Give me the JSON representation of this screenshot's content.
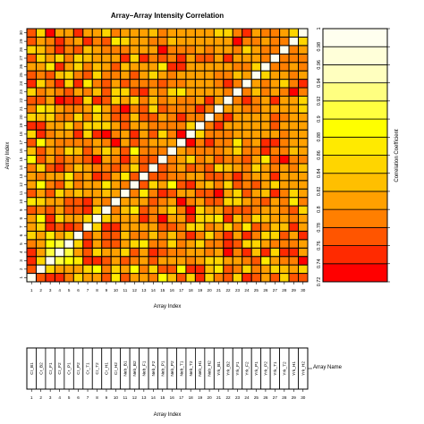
{
  "chart_data": {
    "type": "heatmap",
    "title": "Array–Array Intensity Correlation",
    "xlabel": "Array Index",
    "ylabel": "Array Index",
    "x_ticks": [
      "1",
      "2",
      "3",
      "4",
      "5",
      "6",
      "7",
      "8",
      "9",
      "10",
      "11",
      "12",
      "13",
      "14",
      "15",
      "16",
      "17",
      "18",
      "19",
      "20",
      "21",
      "22",
      "23",
      "24",
      "25",
      "26",
      "27",
      "28",
      "29",
      "30"
    ],
    "y_ticks": [
      "1",
      "2",
      "3",
      "4",
      "5",
      "6",
      "7",
      "8",
      "9",
      "10",
      "11",
      "12",
      "13",
      "14",
      "15",
      "16",
      "17",
      "18",
      "19",
      "20",
      "21",
      "22",
      "23",
      "24",
      "25",
      "26",
      "27",
      "28",
      "29",
      "30"
    ],
    "grid": true,
    "legend": "right",
    "colorbar": {
      "label": "Correlation Coefficient",
      "ticks": [
        "0.72",
        "0.74",
        "0.76",
        "0.78",
        "0.8",
        "0.82",
        "0.84",
        "0.86",
        "0.88",
        "0.9",
        "0.92",
        "0.94",
        "0.96",
        "0.98",
        "1"
      ],
      "range": [
        0.72,
        1.0
      ],
      "colors": [
        "#ff0000",
        "#ff2a00",
        "#ff5500",
        "#ff7f00",
        "#ffa000",
        "#ffbf00",
        "#ffd500",
        "#ffea00",
        "#ffff00",
        "#ffff40",
        "#ffff80",
        "#ffffbf",
        "#ffffd9",
        "#ffffef"
      ]
    },
    "bottom_panel": {
      "xlabel": "Array Index",
      "legend_label": "Array Name",
      "names": [
        "Cr_B1",
        "Cr_B2",
        "Cr_F1",
        "Cr_F2",
        "Cr_P1",
        "Cr_P2",
        "Cr_T1",
        "Cr_T2",
        "Cr_H1",
        "Cr_H2",
        "Neb_B1",
        "Neb_B2",
        "Neb_F1",
        "Neb_F2",
        "Neb_P1",
        "Neb_P2",
        "Neb_T1",
        "Neb_T2",
        "Neb_H1",
        "Neb_H2",
        "Yrk_B1",
        "Yrk_B2",
        "Yrk_F1",
        "Yrk_F2",
        "Yrk_P1",
        "Yrk_P2",
        "Yrk_T1",
        "Yrk_T2",
        "Yrk_H1",
        "Yrk_H2"
      ]
    },
    "matrix": [
      [
        1.0,
        0.77,
        0.75,
        0.74,
        0.79,
        0.84,
        0.81,
        0.8,
        0.76,
        0.86,
        0.77,
        0.8,
        0.81,
        0.79,
        0.88,
        0.83,
        0.76,
        0.85,
        0.74,
        0.84,
        0.78,
        0.76,
        0.85,
        0.75,
        0.76,
        0.82,
        0.76,
        0.84,
        0.77,
        0.76
      ],
      [
        0.77,
        1.0,
        0.84,
        0.81,
        0.8,
        0.8,
        0.84,
        0.88,
        0.79,
        0.85,
        0.82,
        0.88,
        0.79,
        0.84,
        0.77,
        0.77,
        0.88,
        0.74,
        0.75,
        0.83,
        0.86,
        0.77,
        0.79,
        0.84,
        0.78,
        0.81,
        0.84,
        0.83,
        0.8,
        0.85
      ],
      [
        0.75,
        0.84,
        1.0,
        0.91,
        0.88,
        0.86,
        0.74,
        0.75,
        0.76,
        0.8,
        0.77,
        0.78,
        0.81,
        0.77,
        0.81,
        0.8,
        0.81,
        0.78,
        0.8,
        0.85,
        0.84,
        0.82,
        0.8,
        0.79,
        0.76,
        0.86,
        0.8,
        0.78,
        0.79,
        0.73
      ],
      [
        0.74,
        0.81,
        0.91,
        1.0,
        0.9,
        0.82,
        0.77,
        0.84,
        0.8,
        0.81,
        0.84,
        0.77,
        0.82,
        0.75,
        0.76,
        0.79,
        0.78,
        0.8,
        0.81,
        0.79,
        0.82,
        0.73,
        0.78,
        0.75,
        0.83,
        0.74,
        0.84,
        0.74,
        0.74,
        0.82
      ],
      [
        0.79,
        0.8,
        0.88,
        0.9,
        1.0,
        0.84,
        0.74,
        0.8,
        0.76,
        0.77,
        0.81,
        0.85,
        0.86,
        0.79,
        0.78,
        0.85,
        0.78,
        0.8,
        0.84,
        0.78,
        0.78,
        0.75,
        0.76,
        0.84,
        0.84,
        0.8,
        0.79,
        0.78,
        0.78,
        0.8
      ],
      [
        0.84,
        0.8,
        0.86,
        0.82,
        0.84,
        1.0,
        0.76,
        0.81,
        0.76,
        0.76,
        0.83,
        0.78,
        0.78,
        0.83,
        0.78,
        0.83,
        0.78,
        0.75,
        0.79,
        0.85,
        0.78,
        0.74,
        0.8,
        0.75,
        0.79,
        0.84,
        0.85,
        0.77,
        0.81,
        0.75
      ],
      [
        0.81,
        0.84,
        0.74,
        0.77,
        0.74,
        0.76,
        1.0,
        0.85,
        0.75,
        0.75,
        0.8,
        0.8,
        0.8,
        0.8,
        0.77,
        0.76,
        0.79,
        0.84,
        0.84,
        0.78,
        0.82,
        0.85,
        0.79,
        0.86,
        0.77,
        0.79,
        0.83,
        0.83,
        0.75,
        0.8
      ],
      [
        0.8,
        0.88,
        0.75,
        0.84,
        0.8,
        0.81,
        0.85,
        1.0,
        0.84,
        0.8,
        0.82,
        0.81,
        0.75,
        0.78,
        0.73,
        0.82,
        0.82,
        0.75,
        0.84,
        0.85,
        0.86,
        0.74,
        0.83,
        0.79,
        0.84,
        0.83,
        0.8,
        0.8,
        0.78,
        0.81
      ],
      [
        0.76,
        0.79,
        0.76,
        0.8,
        0.76,
        0.76,
        0.75,
        0.84,
        1.0,
        0.79,
        0.83,
        0.87,
        0.76,
        0.79,
        0.82,
        0.84,
        0.79,
        0.73,
        0.84,
        0.8,
        0.81,
        0.77,
        0.76,
        0.77,
        0.79,
        0.8,
        0.81,
        0.79,
        0.76,
        0.84
      ],
      [
        0.86,
        0.85,
        0.8,
        0.81,
        0.77,
        0.76,
        0.75,
        0.8,
        0.79,
        1.0,
        0.8,
        0.8,
        0.81,
        0.77,
        0.78,
        0.82,
        0.73,
        0.79,
        0.8,
        0.77,
        0.76,
        0.84,
        0.85,
        0.8,
        0.79,
        0.77,
        0.82,
        0.78,
        0.86,
        0.79
      ],
      [
        0.77,
        0.82,
        0.77,
        0.84,
        0.81,
        0.83,
        0.8,
        0.82,
        0.83,
        0.8,
        1.0,
        0.79,
        0.86,
        0.79,
        0.75,
        0.76,
        0.8,
        0.8,
        0.76,
        0.76,
        0.73,
        0.82,
        0.85,
        0.77,
        0.8,
        0.83,
        0.75,
        0.79,
        0.85,
        0.8
      ],
      [
        0.8,
        0.88,
        0.78,
        0.77,
        0.85,
        0.78,
        0.8,
        0.81,
        0.87,
        0.8,
        0.79,
        1.0,
        0.76,
        0.84,
        0.8,
        0.88,
        0.77,
        0.75,
        0.8,
        0.83,
        0.79,
        0.84,
        0.76,
        0.78,
        0.76,
        0.8,
        0.84,
        0.81,
        0.82,
        0.82
      ],
      [
        0.81,
        0.79,
        0.81,
        0.82,
        0.86,
        0.78,
        0.8,
        0.75,
        0.76,
        0.81,
        0.86,
        0.76,
        1.0,
        0.77,
        0.77,
        0.78,
        0.78,
        0.82,
        0.82,
        0.77,
        0.76,
        0.79,
        0.75,
        0.79,
        0.82,
        0.8,
        0.75,
        0.81,
        0.8,
        0.8
      ],
      [
        0.79,
        0.84,
        0.77,
        0.75,
        0.79,
        0.83,
        0.8,
        0.78,
        0.79,
        0.77,
        0.79,
        0.84,
        0.77,
        1.0,
        0.76,
        0.78,
        0.82,
        0.77,
        0.78,
        0.76,
        0.85,
        0.83,
        0.81,
        0.79,
        0.84,
        0.81,
        0.78,
        0.8,
        0.79,
        0.83
      ],
      [
        0.88,
        0.77,
        0.81,
        0.76,
        0.78,
        0.78,
        0.77,
        0.73,
        0.82,
        0.78,
        0.75,
        0.8,
        0.77,
        0.76,
        1.0,
        0.79,
        0.81,
        0.84,
        0.78,
        0.8,
        0.77,
        0.78,
        0.78,
        0.76,
        0.8,
        0.87,
        0.77,
        0.73,
        0.79,
        0.78
      ],
      [
        0.83,
        0.77,
        0.8,
        0.79,
        0.85,
        0.83,
        0.76,
        0.82,
        0.84,
        0.82,
        0.76,
        0.88,
        0.78,
        0.78,
        0.79,
        1.0,
        0.8,
        0.79,
        0.79,
        0.79,
        0.78,
        0.82,
        0.84,
        0.78,
        0.78,
        0.74,
        0.79,
        0.79,
        0.83,
        0.8
      ],
      [
        0.76,
        0.88,
        0.81,
        0.78,
        0.78,
        0.78,
        0.79,
        0.82,
        0.79,
        0.73,
        0.8,
        0.77,
        0.78,
        0.82,
        0.81,
        0.8,
        1.0,
        0.73,
        0.79,
        0.75,
        0.78,
        0.78,
        0.86,
        0.78,
        0.81,
        0.75,
        0.74,
        0.79,
        0.82,
        0.8
      ],
      [
        0.85,
        0.74,
        0.78,
        0.8,
        0.8,
        0.75,
        0.84,
        0.75,
        0.73,
        0.79,
        0.8,
        0.75,
        0.82,
        0.77,
        0.84,
        0.79,
        0.73,
        1.0,
        0.85,
        0.78,
        0.79,
        0.78,
        0.82,
        0.81,
        0.8,
        0.81,
        0.8,
        0.79,
        0.8,
        0.81
      ],
      [
        0.74,
        0.75,
        0.8,
        0.81,
        0.84,
        0.79,
        0.84,
        0.84,
        0.84,
        0.8,
        0.76,
        0.8,
        0.82,
        0.78,
        0.78,
        0.79,
        0.79,
        0.85,
        1.0,
        0.78,
        0.74,
        0.8,
        0.8,
        0.8,
        0.81,
        0.8,
        0.76,
        0.82,
        0.81,
        0.8
      ],
      [
        0.84,
        0.83,
        0.85,
        0.79,
        0.78,
        0.85,
        0.78,
        0.85,
        0.8,
        0.77,
        0.76,
        0.83,
        0.77,
        0.76,
        0.8,
        0.79,
        0.75,
        0.78,
        0.78,
        1.0,
        0.79,
        0.75,
        0.81,
        0.81,
        0.81,
        0.81,
        0.77,
        0.79,
        0.81,
        0.81
      ],
      [
        0.78,
        0.86,
        0.84,
        0.82,
        0.78,
        0.78,
        0.82,
        0.86,
        0.81,
        0.76,
        0.73,
        0.79,
        0.76,
        0.85,
        0.77,
        0.78,
        0.78,
        0.79,
        0.74,
        0.79,
        1.0,
        0.8,
        0.8,
        0.79,
        0.78,
        0.8,
        0.81,
        0.81,
        0.81,
        0.84
      ],
      [
        0.76,
        0.77,
        0.82,
        0.73,
        0.75,
        0.74,
        0.85,
        0.74,
        0.77,
        0.84,
        0.82,
        0.84,
        0.79,
        0.83,
        0.78,
        0.82,
        0.78,
        0.78,
        0.8,
        0.75,
        0.8,
        1.0,
        0.79,
        0.74,
        0.78,
        0.8,
        0.75,
        0.81,
        0.81,
        0.84
      ],
      [
        0.85,
        0.79,
        0.8,
        0.78,
        0.76,
        0.8,
        0.79,
        0.83,
        0.76,
        0.85,
        0.85,
        0.76,
        0.75,
        0.81,
        0.78,
        0.84,
        0.86,
        0.82,
        0.8,
        0.81,
        0.8,
        0.79,
        1.0,
        0.79,
        0.83,
        0.79,
        0.8,
        0.78,
        0.73,
        0.79
      ],
      [
        0.75,
        0.84,
        0.79,
        0.75,
        0.84,
        0.75,
        0.86,
        0.79,
        0.77,
        0.8,
        0.77,
        0.78,
        0.79,
        0.79,
        0.76,
        0.78,
        0.78,
        0.81,
        0.8,
        0.81,
        0.79,
        0.74,
        0.79,
        1.0,
        0.8,
        0.78,
        0.8,
        0.85,
        0.79,
        0.74
      ],
      [
        0.76,
        0.78,
        0.76,
        0.83,
        0.84,
        0.79,
        0.77,
        0.84,
        0.79,
        0.79,
        0.8,
        0.76,
        0.82,
        0.84,
        0.8,
        0.78,
        0.81,
        0.8,
        0.81,
        0.81,
        0.78,
        0.78,
        0.83,
        0.8,
        1.0,
        0.84,
        0.81,
        0.8,
        0.79,
        0.8
      ],
      [
        0.82,
        0.81,
        0.86,
        0.74,
        0.8,
        0.84,
        0.79,
        0.83,
        0.8,
        0.77,
        0.83,
        0.8,
        0.8,
        0.81,
        0.87,
        0.74,
        0.75,
        0.81,
        0.8,
        0.81,
        0.8,
        0.8,
        0.79,
        0.78,
        0.84,
        1.0,
        0.79,
        0.79,
        0.8,
        0.79
      ],
      [
        0.76,
        0.84,
        0.8,
        0.84,
        0.79,
        0.85,
        0.83,
        0.8,
        0.81,
        0.82,
        0.75,
        0.84,
        0.75,
        0.78,
        0.77,
        0.79,
        0.74,
        0.8,
        0.76,
        0.77,
        0.81,
        0.75,
        0.8,
        0.8,
        0.81,
        0.79,
        1.0,
        0.79,
        0.79,
        0.79
      ],
      [
        0.84,
        0.83,
        0.78,
        0.74,
        0.78,
        0.77,
        0.83,
        0.8,
        0.79,
        0.78,
        0.79,
        0.81,
        0.81,
        0.8,
        0.73,
        0.79,
        0.79,
        0.79,
        0.82,
        0.79,
        0.81,
        0.81,
        0.78,
        0.85,
        0.8,
        0.79,
        0.79,
        1.0,
        0.79,
        0.82
      ],
      [
        0.77,
        0.8,
        0.79,
        0.74,
        0.78,
        0.81,
        0.75,
        0.78,
        0.76,
        0.86,
        0.85,
        0.82,
        0.8,
        0.79,
        0.79,
        0.83,
        0.82,
        0.8,
        0.81,
        0.81,
        0.81,
        0.81,
        0.73,
        0.79,
        0.79,
        0.8,
        0.79,
        0.79,
        1.0,
        0.84
      ],
      [
        0.76,
        0.85,
        0.73,
        0.82,
        0.8,
        0.75,
        0.8,
        0.81,
        0.84,
        0.79,
        0.8,
        0.82,
        0.8,
        0.83,
        0.78,
        0.8,
        0.8,
        0.81,
        0.8,
        0.81,
        0.84,
        0.84,
        0.79,
        0.74,
        0.8,
        0.79,
        0.79,
        0.82,
        0.84,
        1.0
      ]
    ]
  }
}
